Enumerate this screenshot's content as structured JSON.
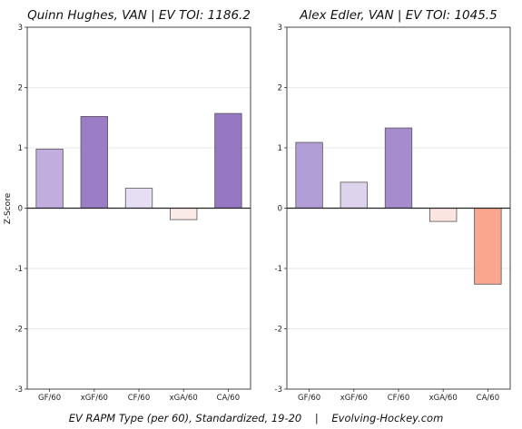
{
  "caption": "EV RAPM Type (per 60), Standardized, 19-20    |    Evolving-Hockey.com",
  "ylabel": "Z-Score",
  "chart_data": [
    {
      "type": "bar",
      "title": "Quinn Hughes, VAN  |  EV TOI: 1186.2",
      "categories": [
        "GF/60",
        "xGF/60",
        "CF/60",
        "xGA/60",
        "CA/60"
      ],
      "values": [
        0.98,
        1.52,
        0.33,
        -0.19,
        1.57
      ],
      "colors": [
        "#c2addf",
        "#9b7dc6",
        "#e6def3",
        "#fbebe6",
        "#9577c3"
      ],
      "ylim": [
        -3,
        3
      ],
      "yticks": [
        -3,
        -2,
        -1,
        0,
        1,
        2,
        3
      ],
      "grid": true,
      "ylabel": "Z-Score"
    },
    {
      "type": "bar",
      "title": "Alex Edler, VAN  |  EV TOI: 1045.5",
      "categories": [
        "GF/60",
        "xGF/60",
        "CF/60",
        "xGA/60",
        "CA/60"
      ],
      "values": [
        1.09,
        0.43,
        1.33,
        -0.22,
        -1.26
      ],
      "colors": [
        "#b29ed7",
        "#ddd3ed",
        "#a68ccc",
        "#fbe5e0",
        "#f9a68e"
      ],
      "ylim": [
        -3,
        3
      ],
      "yticks": [
        -3,
        -2,
        -1,
        0,
        1,
        2,
        3
      ],
      "grid": true
    }
  ]
}
